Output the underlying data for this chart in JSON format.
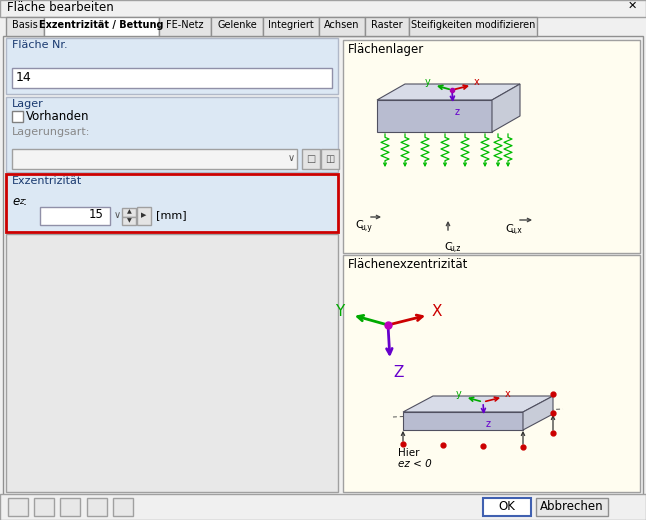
{
  "title": "Fläche bearbeiten",
  "tabs": [
    "Basis",
    "Exzentrizität / Bettung",
    "FE-Netz",
    "Gelenke",
    "Integriert",
    "Achsen",
    "Raster",
    "Steifigkeiten modifizieren"
  ],
  "active_tab": 1,
  "field_flaeche_nr_label": "Fläche Nr.",
  "field_flaeche_nr_value": "14",
  "field_lager_label": "Lager",
  "field_vorhanden_label": "Vorhanden",
  "field_lagerungsart_label": "Lagerungsart:",
  "field_exzentrizitaet_label": "Exzentrizität",
  "field_ez_label": "ez:",
  "field_ez_value": "15",
  "field_ez_unit": "[mm]",
  "panel_flachenlager_title": "Flächenlager",
  "panel_flachenexzentrizitaet_title": "Flächenexzentrizität",
  "annotation_hier": "Hier",
  "annotation_ez": "ez < 0",
  "bg_color": "#f0f0f0",
  "dialog_bg": "#f0f0f0",
  "panel_bg_color": "#fffdf0",
  "title_bar_color": "#f0f0f0",
  "tab_active_color": "#ffffff",
  "tab_inactive_color": "#e4e4e4",
  "section_header_bg": "#c8d8ea",
  "input_bg": "#ffffff",
  "highlight_border_color": "#cc0000",
  "axis_x_color": "#cc0000",
  "axis_y_color": "#00aa00",
  "axis_z_color": "#6600cc",
  "spring_color": "#00bb00",
  "box_top_color": "#d8dce8",
  "box_front_color": "#b8bcd0",
  "box_side_color": "#c8ccd8",
  "button_ok_label": "OK",
  "button_cancel_label": "Abbrechen"
}
